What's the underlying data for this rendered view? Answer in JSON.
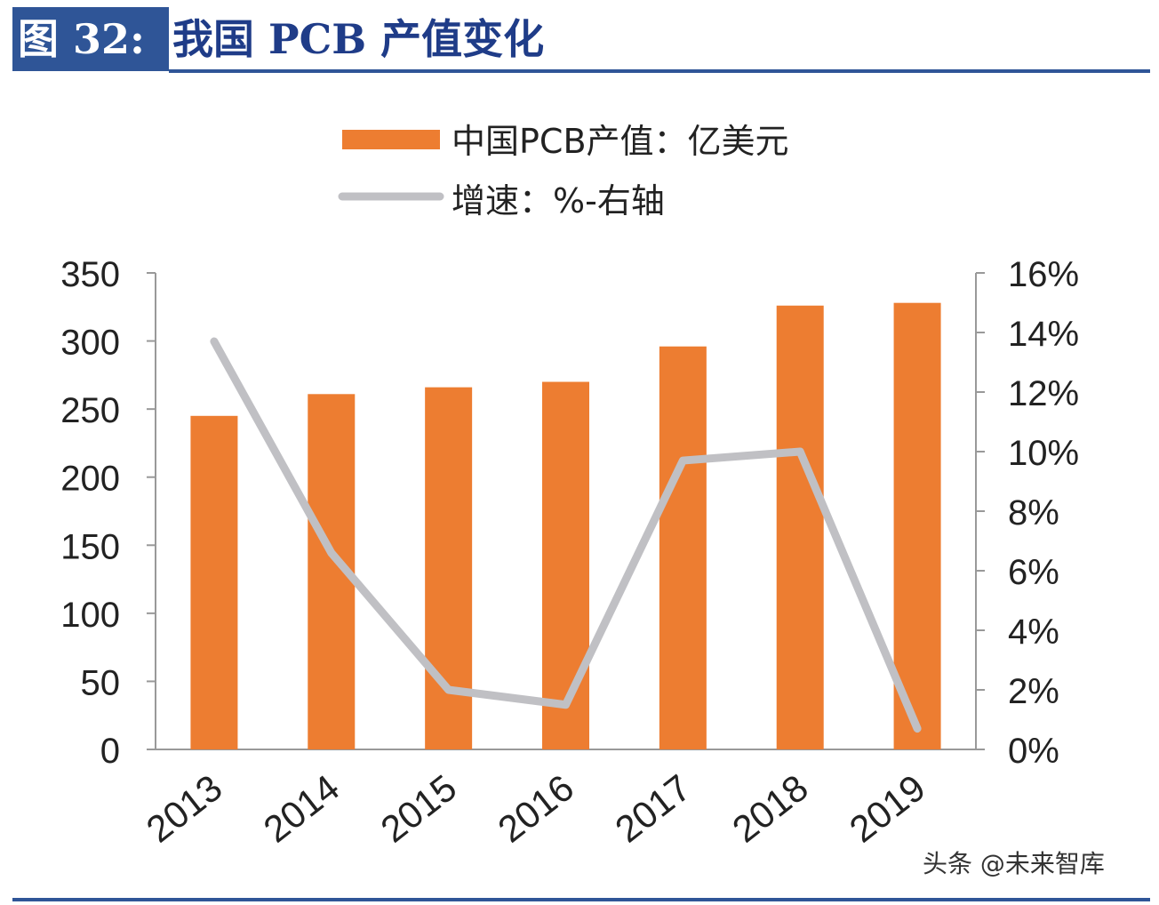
{
  "header": {
    "figure_label": "图 32:",
    "title": "我国 PCB 产值变化"
  },
  "watermark": "头条 @未来智库",
  "colors": {
    "bar": "#ed7d31",
    "line": "#c0c0c4",
    "header_bg": "#2f5597",
    "title_text": "#1f3c88"
  },
  "chart_data": {
    "type": "bar",
    "categories": [
      "2013",
      "2014",
      "2015",
      "2016",
      "2017",
      "2018",
      "2019"
    ],
    "series": [
      {
        "name": "中国PCB产值：亿美元",
        "type": "bar",
        "axis": "left",
        "values": [
          245,
          261,
          266,
          270,
          296,
          326,
          328
        ]
      },
      {
        "name": "增速：%-右轴",
        "type": "line",
        "axis": "right",
        "values": [
          13.7,
          6.6,
          2.0,
          1.5,
          9.7,
          10.0,
          0.7
        ]
      }
    ],
    "left_axis": {
      "min": 0,
      "max": 350,
      "ticks": [
        "0",
        "50",
        "100",
        "150",
        "200",
        "250",
        "300",
        "350"
      ]
    },
    "right_axis": {
      "min": 0,
      "max": 16,
      "ticks": [
        "0%",
        "2%",
        "4%",
        "6%",
        "8%",
        "10%",
        "12%",
        "14%",
        "16%"
      ]
    },
    "legend_position": "top",
    "grid": false
  }
}
